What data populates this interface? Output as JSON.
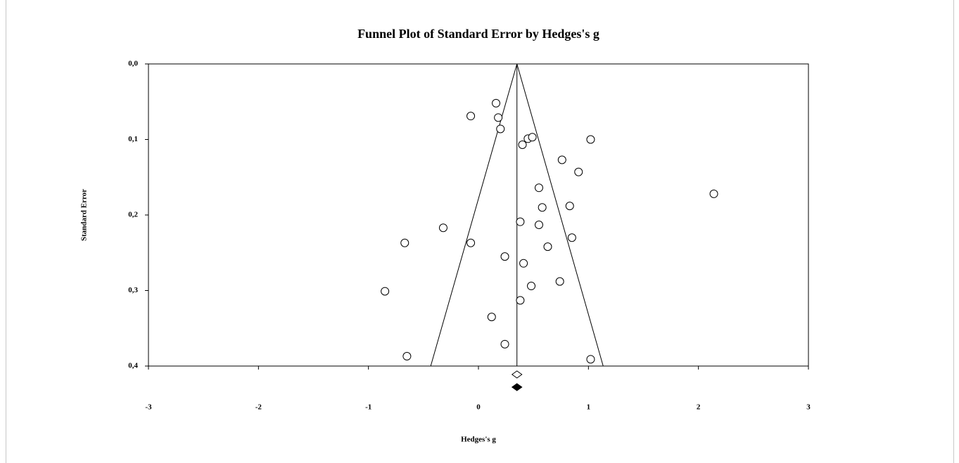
{
  "chart_data": {
    "type": "funnel",
    "title": "Funnel Plot of Standard Error by Hedges's g",
    "x_label": "Hedges's g",
    "y_label": "Standard Error",
    "xlim": [
      -3,
      3
    ],
    "xticks": [
      -3,
      -2,
      -1,
      0,
      1,
      2,
      3
    ],
    "ylim": [
      0,
      0.4
    ],
    "yticks": [
      {
        "value": 0,
        "label": "0,0"
      },
      {
        "value": 0.1,
        "label": "0,1"
      },
      {
        "value": 0.2,
        "label": "0,2"
      },
      {
        "value": 0.3,
        "label": "0,3"
      },
      {
        "value": 0.4,
        "label": "0,4"
      }
    ],
    "y_inverted": true,
    "mean": 0.35,
    "x": [
      0.16,
      -0.07,
      0.18,
      0.2,
      0.45,
      0.49,
      0.4,
      1.02,
      0.76,
      0.91,
      0.55,
      2.14,
      0.58,
      0.83,
      0.38,
      0.55,
      -0.32,
      -0.67,
      -0.07,
      0.85,
      0.63,
      0.24,
      0.41,
      0.74,
      0.48,
      -0.85,
      0.38,
      0.12,
      0.24,
      -0.65,
      1.02
    ],
    "values": [
      0.052,
      0.069,
      0.071,
      0.086,
      0.099,
      0.097,
      0.107,
      0.1,
      0.127,
      0.143,
      0.164,
      0.172,
      0.19,
      0.188,
      0.209,
      0.213,
      0.217,
      0.237,
      0.237,
      0.23,
      0.242,
      0.255,
      0.264,
      0.288,
      0.294,
      0.301,
      0.313,
      0.335,
      0.371,
      0.387,
      0.391
    ],
    "summary_observed": 0.35,
    "summary_adjusted": 0.35
  }
}
